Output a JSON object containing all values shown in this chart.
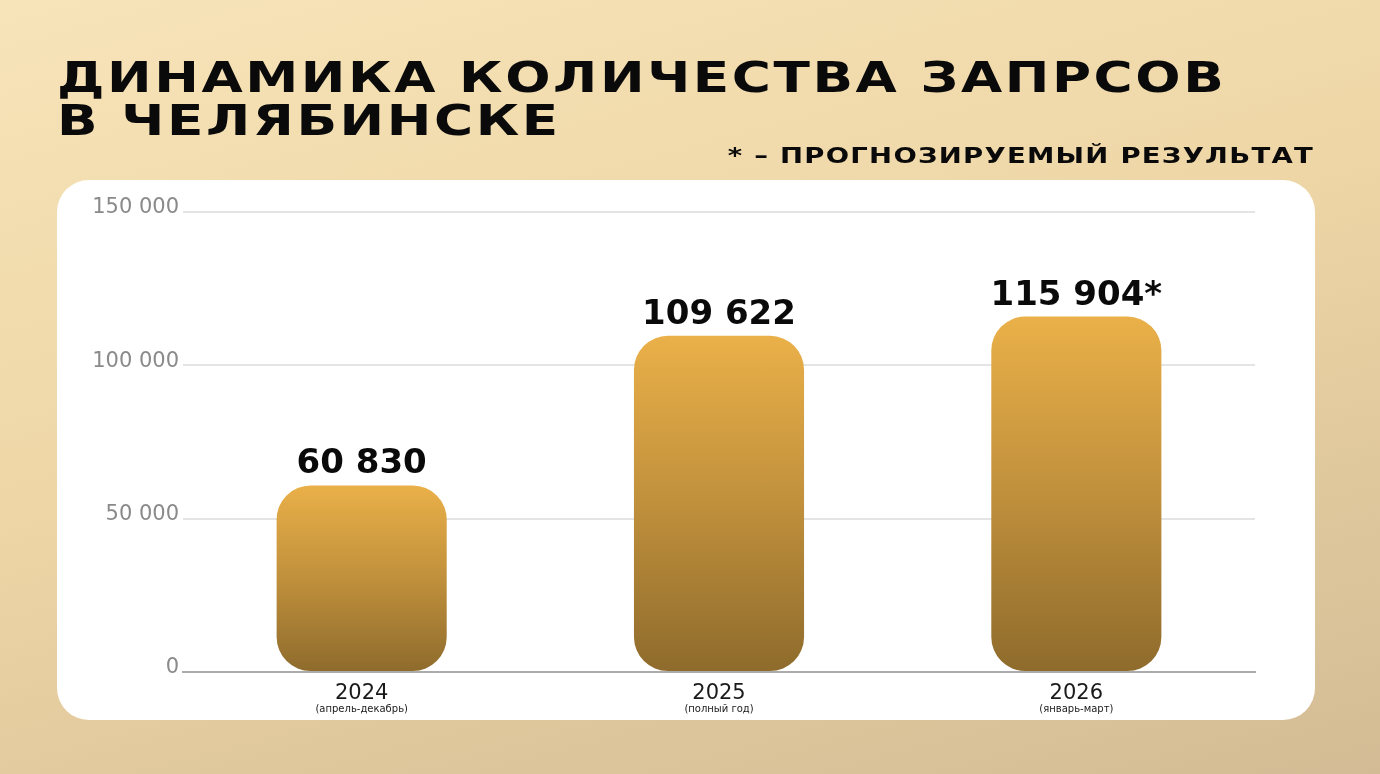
{
  "chart_data": {
    "type": "bar",
    "title": "ДИНАМИКА КОЛИЧЕСТВА ЗАПРСОВ В ЧЕЛЯБИНСКЕ",
    "annotations": [
      "* – ПРОГНОЗИРУЕМЫЙ РЕЗУЛЬТАТ"
    ],
    "categories": [
      "2024\n(апрель-декабрь)",
      "2025\n(полный год)",
      "2026\n(январь-март)"
    ],
    "values": [
      60830,
      109622,
      115904
    ],
    "value_labels": [
      "60 830",
      "109 622",
      "115 904*"
    ],
    "color": "#c0903c",
    "ylim": [
      0,
      150000
    ],
    "yticks": [
      0,
      {
        "value": 50000,
        "label": "50 000"
      },
      {
        "value": 100000,
        "label": "100 000"
      },
      {
        "value": 150000,
        "label": "150 000"
      }
    ],
    "grid": "y"
  }
}
